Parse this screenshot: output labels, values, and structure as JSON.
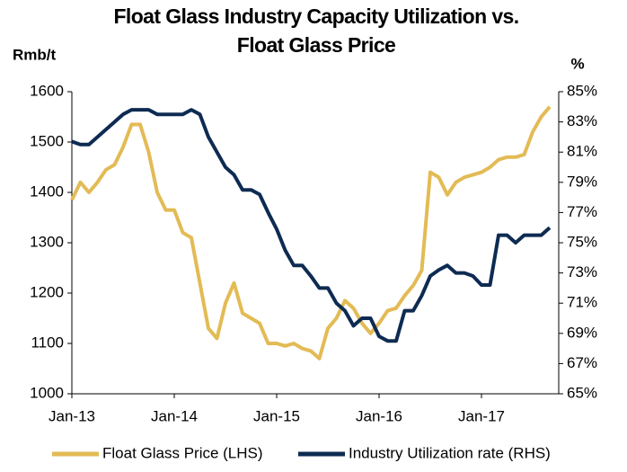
{
  "chart_data": {
    "type": "line",
    "title": [
      "Float Glass Industry Capacity Utilization vs.",
      "Float Glass Price"
    ],
    "ylabel": "Rmb/t",
    "y2label": "%",
    "categories": [
      "Jan-13",
      null,
      null,
      null,
      null,
      null,
      null,
      null,
      null,
      null,
      null,
      null,
      "Jan-14",
      null,
      null,
      null,
      null,
      null,
      null,
      null,
      null,
      null,
      null,
      null,
      "Jan-15",
      null,
      null,
      null,
      null,
      null,
      null,
      null,
      null,
      null,
      null,
      null,
      "Jan-16",
      null,
      null,
      null,
      null,
      null,
      null,
      null,
      null,
      null,
      null,
      null,
      "Jan-17",
      null,
      null,
      null,
      null,
      null,
      null,
      null,
      null
    ],
    "series": [
      {
        "name": "Float Glass Price (LHS)",
        "color": "#e3bb55",
        "axis": "y",
        "values": [
          1385,
          1420,
          1400,
          1420,
          1445,
          1455,
          1490,
          1535,
          1535,
          1480,
          1400,
          1365,
          1365,
          1320,
          1310,
          1220,
          1130,
          1110,
          1180,
          1220,
          1160,
          1150,
          1140,
          1100,
          1100,
          1095,
          1100,
          1090,
          1085,
          1070,
          1130,
          1150,
          1185,
          1170,
          1140,
          1120,
          1140,
          1165,
          1170,
          1195,
          1215,
          1245,
          1440,
          1430,
          1395,
          1420,
          1430,
          1435,
          1440,
          1450,
          1465,
          1470,
          1470,
          1475,
          1520,
          1550,
          1570
        ]
      },
      {
        "name": "Industry Utilization rate (RHS)",
        "color": "#0e2b52",
        "axis": "y2",
        "values": [
          81.7,
          81.5,
          81.5,
          82,
          82.5,
          83,
          83.5,
          83.8,
          83.8,
          83.8,
          83.5,
          83.5,
          83.5,
          83.5,
          83.8,
          83.5,
          82,
          81,
          80,
          79.5,
          78.5,
          78.5,
          78.2,
          77,
          75.9,
          74.5,
          73.5,
          73.5,
          72.8,
          72,
          72,
          71,
          70.5,
          69.5,
          70,
          70,
          68.8,
          68.5,
          68.5,
          70.5,
          70.5,
          71.5,
          72.8,
          73.2,
          73.5,
          73,
          73,
          72.8,
          72.2,
          72.2,
          75.5,
          75.5,
          75,
          75.5,
          75.5,
          75.5,
          76
        ]
      }
    ],
    "ylim": [
      1000,
      1600
    ],
    "yticks": [
      1000,
      1100,
      1200,
      1300,
      1400,
      1500,
      1600
    ],
    "y2lim": [
      65,
      85
    ],
    "y2ticks": [
      {
        "value": 65,
        "label": "65%"
      },
      {
        "value": 67,
        "label": "67%"
      },
      {
        "value": 69,
        "label": "69%"
      },
      {
        "value": 71,
        "label": "71%"
      },
      {
        "value": 73,
        "label": "73%"
      },
      {
        "value": 75,
        "label": "75%"
      },
      {
        "value": 77,
        "label": "77%"
      },
      {
        "value": 79,
        "label": "79%"
      },
      {
        "value": 81,
        "label": "81%"
      },
      {
        "value": 83,
        "label": "83%"
      },
      {
        "value": 85,
        "label": "85%"
      }
    ],
    "grid": false,
    "legend": "bottom"
  }
}
